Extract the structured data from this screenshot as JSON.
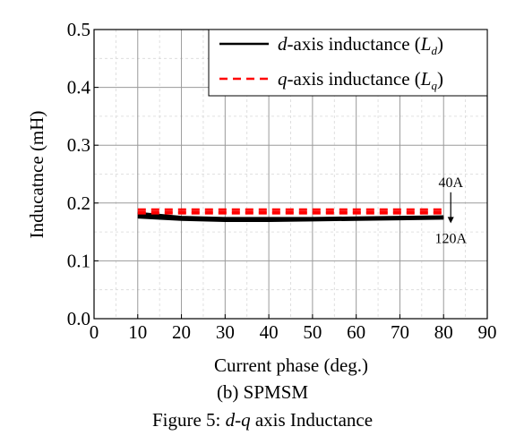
{
  "chart_data": {
    "type": "line",
    "xlabel": "Current phase (deg.)",
    "ylabel": "Inducatnce (mH)",
    "xlim": [
      0,
      90
    ],
    "ylim": [
      0,
      0.5
    ],
    "xticks": [
      0,
      10,
      20,
      30,
      40,
      50,
      60,
      70,
      80,
      90
    ],
    "yticks": [
      0.0,
      0.1,
      0.2,
      0.3,
      0.4,
      0.5
    ],
    "ytick_labels": [
      "0.0",
      "0.1",
      "0.2",
      "0.3",
      "0.4",
      "0.5"
    ],
    "grid": true,
    "legend_position": "top-right",
    "legend": [
      {
        "prefix": "d",
        "text": "-axis inductance (",
        "symbol": "L",
        "subscript": "d",
        "suffix": ")",
        "color": "#000000",
        "style": "solid"
      },
      {
        "prefix": "q",
        "text": "-axis inductance (",
        "symbol": "L",
        "subscript": "q",
        "suffix": ")",
        "color": "#ff0000",
        "style": "dashed"
      }
    ],
    "series": [
      {
        "group": "d-axis",
        "color": "#000000",
        "style": "solid",
        "x": [
          10,
          20,
          30,
          40,
          50,
          60,
          70,
          80
        ],
        "y": [
          0.183,
          0.176,
          0.174,
          0.174,
          0.174,
          0.175,
          0.176,
          0.177
        ]
      },
      {
        "group": "d-axis",
        "color": "#000000",
        "style": "solid",
        "x": [
          10,
          20,
          30,
          40,
          50,
          60,
          70,
          80
        ],
        "y": [
          0.18,
          0.174,
          0.172,
          0.172,
          0.172,
          0.173,
          0.174,
          0.175
        ]
      },
      {
        "group": "d-axis",
        "color": "#000000",
        "style": "solid",
        "x": [
          10,
          20,
          30,
          40,
          50,
          60,
          70,
          80
        ],
        "y": [
          0.177,
          0.172,
          0.17,
          0.17,
          0.171,
          0.172,
          0.173,
          0.174
        ]
      },
      {
        "group": "d-axis",
        "color": "#000000",
        "style": "solid",
        "x": [
          10,
          20,
          30,
          40,
          50,
          60,
          70,
          80
        ],
        "y": [
          0.175,
          0.171,
          0.169,
          0.169,
          0.17,
          0.171,
          0.172,
          0.173
        ]
      },
      {
        "group": "q-axis",
        "color": "#ff0000",
        "style": "dashed",
        "x": [
          10,
          20,
          30,
          40,
          50,
          60,
          70,
          80
        ],
        "y": [
          0.189,
          0.189,
          0.189,
          0.189,
          0.189,
          0.189,
          0.189,
          0.189
        ]
      },
      {
        "group": "q-axis",
        "color": "#ff0000",
        "style": "dashed",
        "x": [
          10,
          20,
          30,
          40,
          50,
          60,
          70,
          80
        ],
        "y": [
          0.185,
          0.185,
          0.185,
          0.185,
          0.185,
          0.185,
          0.185,
          0.185
        ]
      },
      {
        "group": "q-axis",
        "color": "#ff0000",
        "style": "dashed",
        "x": [
          10,
          20,
          30,
          40,
          50,
          60,
          70,
          80
        ],
        "y": [
          0.182,
          0.182,
          0.182,
          0.182,
          0.182,
          0.182,
          0.182,
          0.182
        ]
      }
    ],
    "annotation": {
      "top_label": "40A",
      "bottom_label": "120A",
      "x": 80,
      "y_from": 0.2,
      "y_to": 0.165
    }
  },
  "captions": {
    "subcaption": "(b) SPMSM",
    "figure_prefix": "Figure 5: ",
    "figure_d": "d",
    "figure_dash": "-",
    "figure_q": "q",
    "figure_rest": " axis Inductance"
  }
}
